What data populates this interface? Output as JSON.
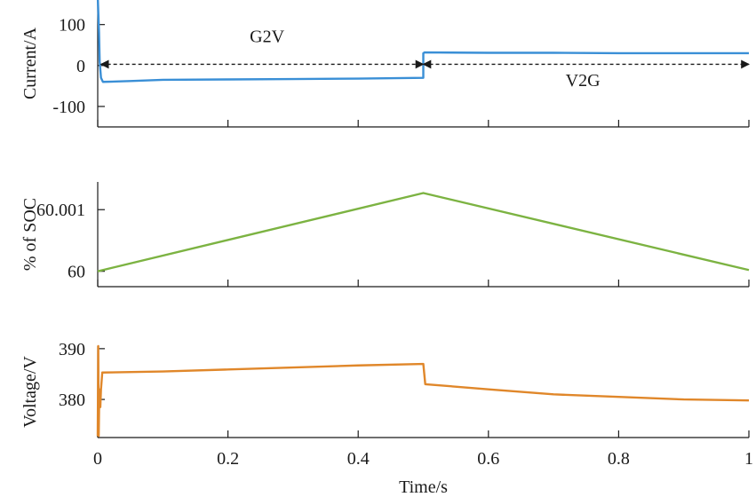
{
  "chart_data": [
    {
      "type": "line",
      "ylabel": "Current/A",
      "ylim": [
        -150,
        160
      ],
      "yticks": [
        100,
        0,
        -100
      ],
      "ytick_labels": [
        "100",
        "0",
        "-100"
      ],
      "xlim": [
        0,
        1
      ],
      "xticks": [
        0,
        0.2,
        0.4,
        0.6,
        0.8,
        1
      ],
      "series": [
        {
          "name": "Current",
          "color": "#3a8fd6",
          "x": [
            0,
            0.002,
            0.003,
            0.005,
            0.008,
            0.05,
            0.1,
            0.2,
            0.3,
            0.4,
            0.5,
            0.5,
            0.502,
            0.6,
            0.7,
            0.8,
            0.9,
            1.0
          ],
          "y": [
            170,
            80,
            10,
            -30,
            -40,
            -38,
            -35,
            -34,
            -33,
            -32,
            -30,
            30,
            32,
            31,
            31,
            30,
            30,
            30
          ]
        }
      ],
      "annotations": [
        {
          "text": "G2V",
          "x_from": 0.005,
          "x_to": 0.5,
          "y": 3,
          "label_x": 0.26,
          "label_y": 57
        },
        {
          "text": "V2G",
          "x_from": 0.5,
          "x_to": 1.0,
          "y": 3,
          "label_x": 0.745,
          "label_y": -50
        }
      ]
    },
    {
      "type": "line",
      "ylabel": "% of SOC",
      "ylim": [
        59.99975,
        60.00145
      ],
      "yticks": [
        60.001,
        60
      ],
      "ytick_labels": [
        "60.001",
        "60"
      ],
      "xlim": [
        0,
        1
      ],
      "xticks": [
        0,
        0.2,
        0.4,
        0.6,
        0.8,
        1
      ],
      "series": [
        {
          "name": "SOC",
          "color": "#7cb342",
          "x": [
            0,
            0.5,
            1.0
          ],
          "y": [
            60.0,
            60.00127,
            60.00002
          ]
        }
      ]
    },
    {
      "type": "line",
      "ylabel": "Voltage/V",
      "xlabel": "Time/s",
      "ylim": [
        372.5,
        390.5
      ],
      "yticks": [
        390,
        380
      ],
      "ytick_labels": [
        "390",
        "380"
      ],
      "xlim": [
        0,
        1
      ],
      "xticks": [
        0,
        0.2,
        0.4,
        0.6,
        0.8,
        1
      ],
      "xtick_labels": [
        "0",
        "0.2",
        "0.4",
        "0.6",
        "0.8",
        "1"
      ],
      "series": [
        {
          "name": "Voltage",
          "color": "#e0872a",
          "x": [
            0,
            0.0008,
            0.0015,
            0.0025,
            0.004,
            0.005,
            0.007,
            0.1,
            0.2,
            0.3,
            0.4,
            0.5,
            0.5,
            0.503,
            0.6,
            0.7,
            0.8,
            0.9,
            1.0
          ],
          "y": [
            372.8,
            390.5,
            372.8,
            382,
            378.5,
            382,
            385.3,
            385.5,
            385.9,
            386.3,
            386.7,
            387.0,
            387.0,
            383.0,
            382.0,
            381.0,
            380.5,
            380.0,
            379.8
          ]
        }
      ]
    }
  ]
}
